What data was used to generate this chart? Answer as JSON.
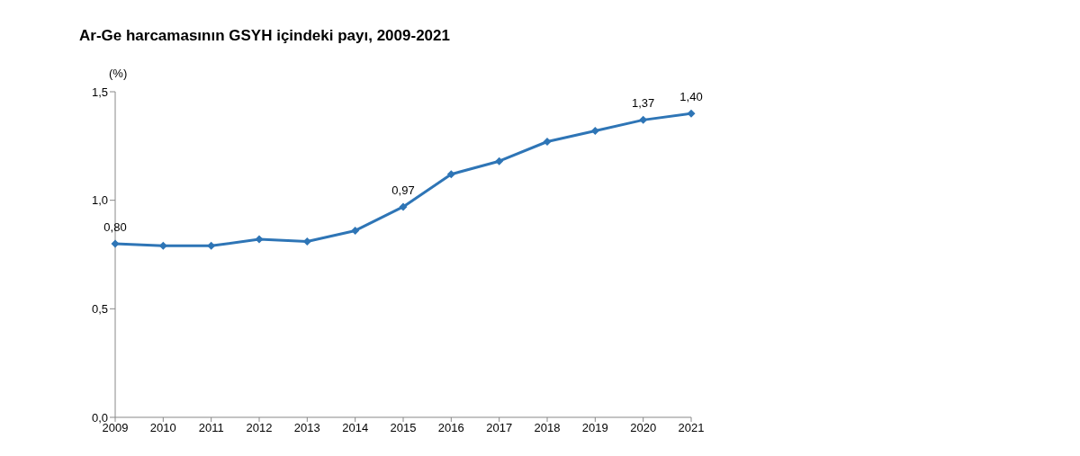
{
  "chart_data": {
    "type": "line",
    "title": "Ar-Ge harcamasının GSYH içindeki payı, 2009-2021",
    "ylabel": "(%)",
    "categories": [
      "2009",
      "2010",
      "2011",
      "2012",
      "2013",
      "2014",
      "2015",
      "2016",
      "2017",
      "2018",
      "2019",
      "2020",
      "2021"
    ],
    "series": [
      {
        "color": "#2e75b6",
        "values": [
          0.8,
          0.79,
          0.79,
          0.82,
          0.81,
          0.86,
          0.97,
          1.12,
          1.18,
          1.27,
          1.32,
          1.37,
          1.4
        ],
        "value_labels": [
          "0,80",
          null,
          null,
          null,
          null,
          null,
          "0,97",
          null,
          null,
          null,
          null,
          "1,37",
          "1,40"
        ]
      }
    ],
    "ylim": [
      0,
      1.5
    ],
    "yticks": [
      {
        "value": 0,
        "label": "0,0"
      },
      {
        "value": 0.5,
        "label": "0,5"
      },
      {
        "value": 1,
        "label": "1,0"
      },
      {
        "value": 1.5,
        "label": "1,5"
      }
    ],
    "grid": false,
    "legend": false,
    "marker": "diamond",
    "line_style": "solid"
  }
}
